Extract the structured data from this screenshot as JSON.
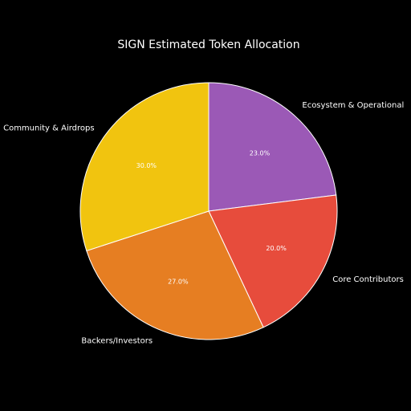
{
  "chart_data": {
    "type": "pie",
    "title": "SIGN Estimated Token Allocation",
    "start_angle": 90,
    "direction": "clockwise",
    "slices": [
      {
        "label": "Ecosystem & Operational",
        "value": 23.0,
        "pct_label": "23.0%",
        "color": "#9b59b6"
      },
      {
        "label": "Core Contributors",
        "value": 20.0,
        "pct_label": "20.0%",
        "color": "#e74c3c"
      },
      {
        "label": "Backers/Investors",
        "value": 27.0,
        "pct_label": "27.0%",
        "color": "#e67e22"
      },
      {
        "label": "Community & Airdrops",
        "value": 30.0,
        "pct_label": "30.0%",
        "color": "#f1c40f"
      }
    ]
  },
  "background_color": "#000000"
}
